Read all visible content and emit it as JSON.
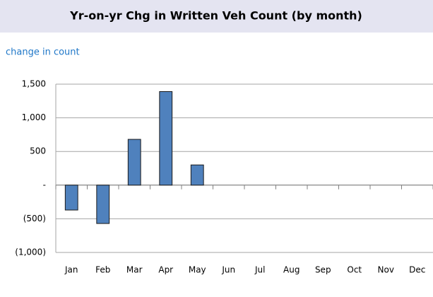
{
  "chart_data": {
    "type": "bar",
    "title": "Yr-on-yr Chg in Written Veh Count (by month)",
    "y_label": "change in count",
    "categories": [
      "Jan",
      "Feb",
      "Mar",
      "Apr",
      "May",
      "Jun",
      "Jul",
      "Aug",
      "Sep",
      "Oct",
      "Nov",
      "Dec"
    ],
    "values": [
      -370,
      -570,
      680,
      1390,
      300,
      null,
      null,
      null,
      null,
      null,
      null,
      null
    ],
    "color": "#4f81bd",
    "ylim": [
      -1000,
      1500
    ],
    "yticks": [
      {
        "value": -1000,
        "label": "(1,000)"
      },
      {
        "value": -500,
        "label": "(500)"
      },
      {
        "value": 0,
        "label": "-"
      },
      500,
      {
        "value": 1000,
        "label": "1,000"
      },
      {
        "value": 1500,
        "label": "1,500"
      }
    ],
    "grid": true
  }
}
